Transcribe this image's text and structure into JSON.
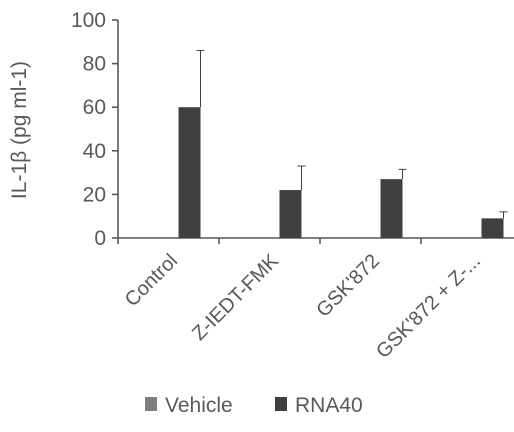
{
  "chart_data": {
    "type": "bar",
    "categories": [
      "Control",
      "Z-IEDT-FMK",
      "GSK'872",
      "GSK'872 + Z-..."
    ],
    "series": [
      {
        "name": "Vehicle",
        "color": "#7f7f7f",
        "values": [
          0,
          0,
          0,
          0
        ],
        "errors": [
          0,
          0,
          0,
          0
        ]
      },
      {
        "name": "RNA40",
        "color": "#404040",
        "values": [
          60,
          22,
          27,
          9
        ],
        "errors": [
          26,
          11,
          4.5,
          3
        ]
      }
    ],
    "title": "",
    "xlabel": "",
    "ylabel": "IL-1β (pg ml-1)",
    "ylim": [
      0,
      100
    ],
    "yticks": [
      0,
      20,
      40,
      60,
      80,
      100
    ],
    "grid": false,
    "legend_position": "bottom"
  }
}
